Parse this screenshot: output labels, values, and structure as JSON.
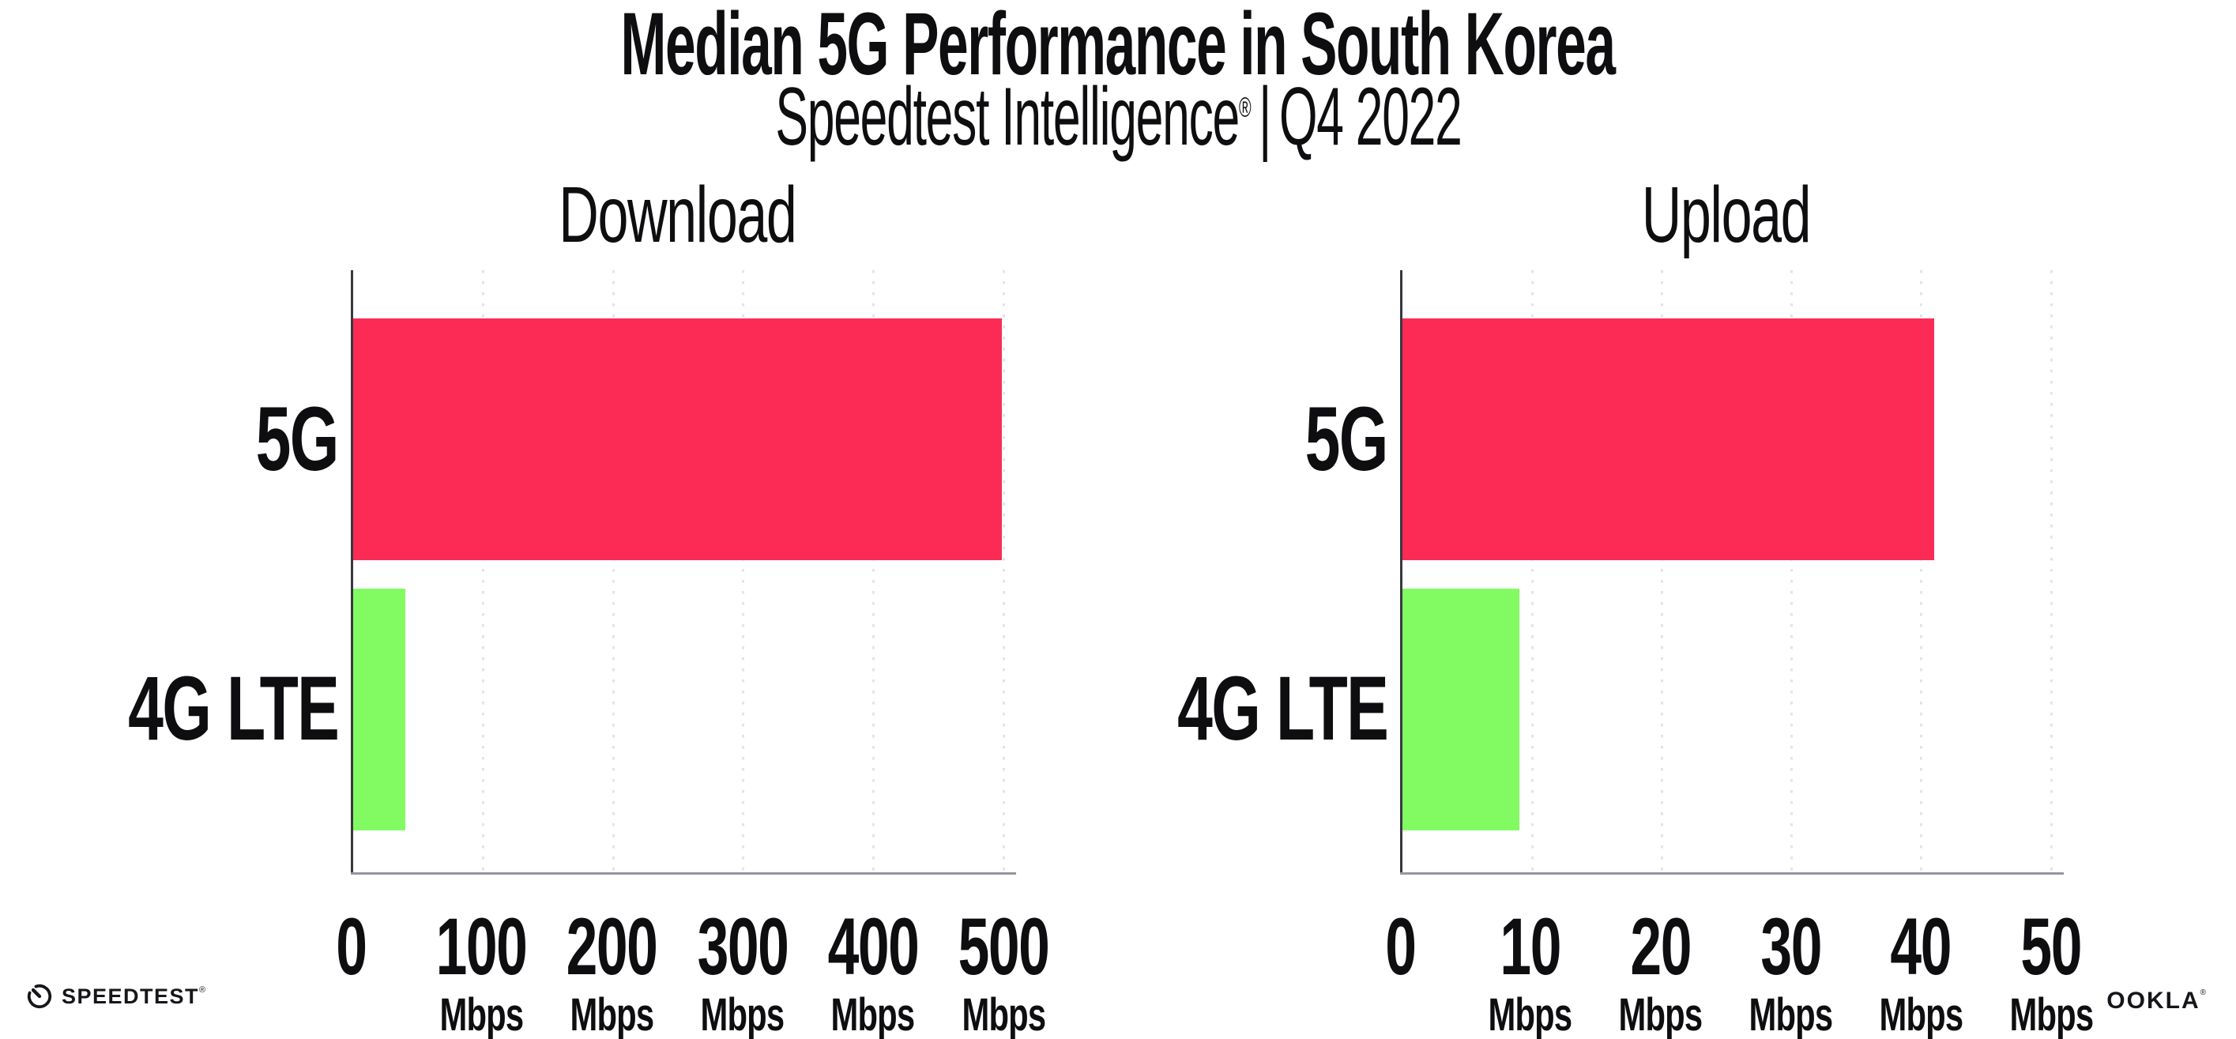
{
  "header": {
    "title": "Median 5G Performance in South Korea",
    "subtitle_brand": "Speedtest Intelligence",
    "subtitle_reg": "®",
    "subtitle_separator": "|",
    "subtitle_period": "Q4 2022"
  },
  "colors": {
    "bar_5g": "#FC2B55",
    "bar_4g": "#82FB63",
    "gridline": "#E3E3EB",
    "axis_line": "#96969E",
    "y_axis_line": "#38383F",
    "text": "#0E0E11"
  },
  "chart_data": [
    {
      "type": "bar",
      "orientation": "horizontal",
      "title": "Download",
      "categories": [
        "5G",
        "4G LTE"
      ],
      "values": [
        499,
        40
      ],
      "unit": "Mbps",
      "xlim": [
        0,
        500
      ],
      "xticks": [
        0,
        100,
        200,
        300,
        400,
        500
      ],
      "grid": "vertical-dotted",
      "legend": "none",
      "ticks": [
        {
          "label": "0",
          "unit": ""
        },
        {
          "label": "100",
          "unit": "Mbps"
        },
        {
          "label": "200",
          "unit": "Mbps"
        },
        {
          "label": "300",
          "unit": "Mbps"
        },
        {
          "label": "400",
          "unit": "Mbps"
        },
        {
          "label": "500",
          "unit": "Mbps"
        }
      ]
    },
    {
      "type": "bar",
      "orientation": "horizontal",
      "title": "Upload",
      "categories": [
        "5G",
        "4G LTE"
      ],
      "values": [
        41,
        9
      ],
      "unit": "Mbps",
      "xlim": [
        0,
        50
      ],
      "xticks": [
        0,
        10,
        20,
        30,
        40,
        50
      ],
      "grid": "vertical-dotted",
      "legend": "none",
      "ticks": [
        {
          "label": "0",
          "unit": ""
        },
        {
          "label": "10",
          "unit": "Mbps"
        },
        {
          "label": "20",
          "unit": "Mbps"
        },
        {
          "label": "30",
          "unit": "Mbps"
        },
        {
          "label": "40",
          "unit": "Mbps"
        },
        {
          "label": "50",
          "unit": "Mbps"
        }
      ]
    }
  ],
  "footer": {
    "speedtest_logo_text": "SPEEDTEST",
    "speedtest_reg": "®",
    "ookla_logo_text": "OOKLA",
    "ookla_reg": "®"
  }
}
